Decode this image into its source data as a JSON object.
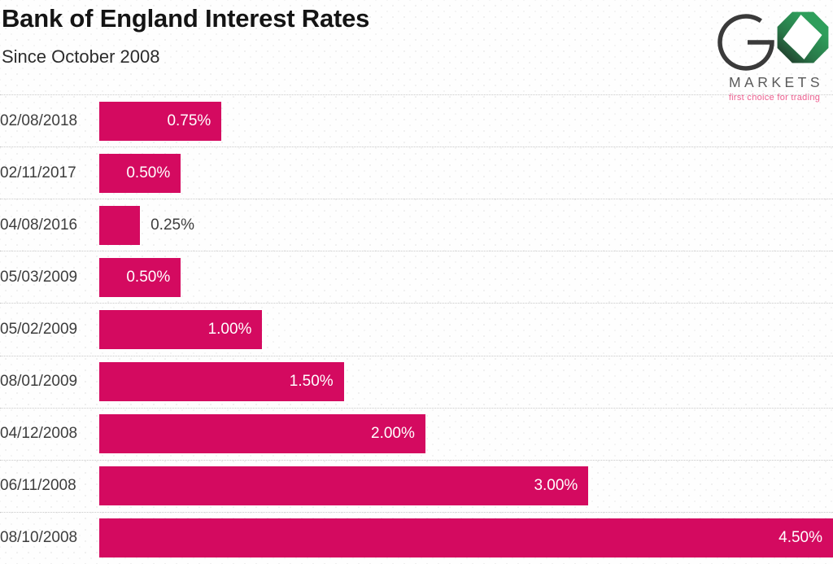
{
  "header": {
    "title": "Bank of England Interest Rates",
    "subtitle": "Since October 2008"
  },
  "logo": {
    "markets_text": "MARKETS",
    "tagline": "first choice for trading",
    "green": "#2e9e5b",
    "dark_gray": "#3a3a3a",
    "tagline_pink": "#ee5f90"
  },
  "chart_data": {
    "type": "bar",
    "orientation": "horizontal",
    "title": "Bank of England Interest Rates",
    "subtitle": "Since October 2008",
    "categories": [
      "02/08/2018",
      "02/11/2017",
      "04/08/2016",
      "05/03/2009",
      "05/02/2009",
      "08/01/2009",
      "04/12/2008",
      "06/11/2008",
      "08/10/2008"
    ],
    "values": [
      0.75,
      0.5,
      0.25,
      0.5,
      1.0,
      1.5,
      2.0,
      3.0,
      4.5
    ],
    "labels": [
      "0.75%",
      "0.50%",
      "0.25%",
      "0.50%",
      "1.00%",
      "1.50%",
      "2.00%",
      "3.00%",
      "4.50%"
    ],
    "xlabel": "",
    "ylabel": "",
    "xlim": [
      0,
      4.5
    ],
    "grid": false,
    "legend": false,
    "bar_color": "#d40a60",
    "label_color_inside": "#ffffff",
    "label_color_outside": "#3d3d3d",
    "label_inside_min_value": 0.5
  }
}
